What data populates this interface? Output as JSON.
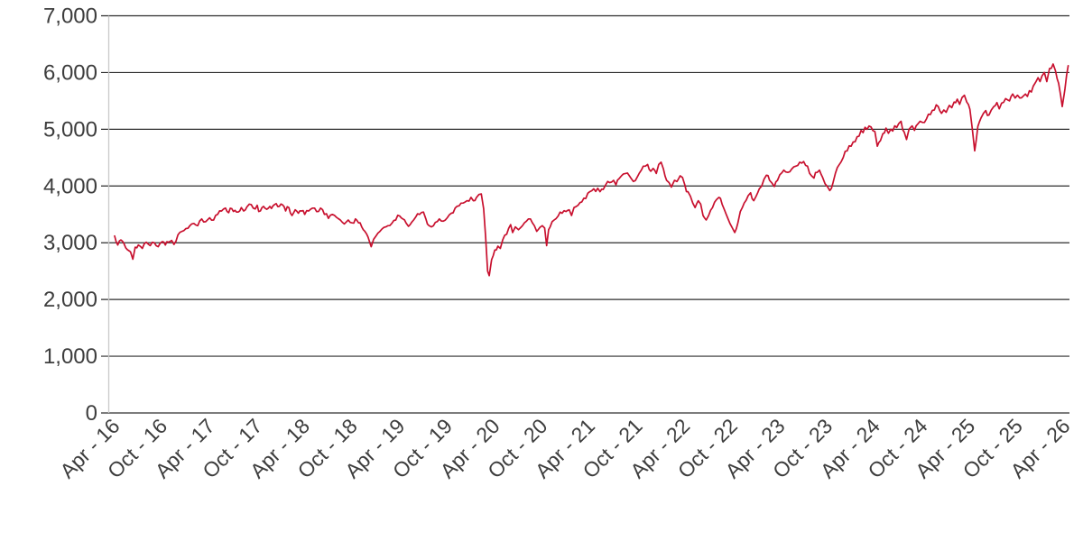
{
  "chart_data": {
    "type": "line",
    "title": "",
    "xlabel": "",
    "ylabel": "",
    "legend": "none",
    "grid": "horizontal",
    "line_color": "#c8102e",
    "grid_color": "#2d2d2d",
    "axis_line_color": "#c9c9c9",
    "tick_text_color": "#3d3d3d",
    "ylim": [
      0,
      7000
    ],
    "y_tick_values": [
      0,
      1000,
      2000,
      3000,
      4000,
      5000,
      6000,
      7000
    ],
    "y_tick_labels": [
      "0",
      "1,000",
      "2,000",
      "3,000",
      "4,000",
      "5,000",
      "6,000",
      "7,000"
    ],
    "x_tick_labels": [
      "Apr - 16",
      "Oct - 16",
      "Apr - 17",
      "Oct - 17",
      "Apr - 18",
      "Oct - 18",
      "Apr - 19",
      "Oct - 19",
      "Apr - 20",
      "Oct - 20",
      "Apr - 21",
      "Oct - 21",
      "Apr - 22",
      "Oct - 22",
      "Apr - 23",
      "Oct - 23",
      "Apr - 24",
      "Oct - 24",
      "Apr - 25",
      "Oct - 25",
      "Apr - 26"
    ],
    "x_unit": "months since Apr-2016",
    "points": [
      [
        0,
        3120
      ],
      [
        0.4,
        2960
      ],
      [
        0.8,
        3050
      ],
      [
        1.2,
        2980
      ],
      [
        1.6,
        2880
      ],
      [
        2,
        2840
      ],
      [
        2.3,
        2710
      ],
      [
        2.6,
        2920
      ],
      [
        3,
        2960
      ],
      [
        3.5,
        2900
      ],
      [
        4,
        3010
      ],
      [
        4.5,
        2950
      ],
      [
        5,
        3000
      ],
      [
        5.5,
        2930
      ],
      [
        6,
        3020
      ],
      [
        6.4,
        2960
      ],
      [
        6.8,
        3010
      ],
      [
        7.2,
        3040
      ],
      [
        7.5,
        2970
      ],
      [
        8,
        3140
      ],
      [
        8.5,
        3200
      ],
      [
        9,
        3250
      ],
      [
        9.5,
        3300
      ],
      [
        10,
        3340
      ],
      [
        10.5,
        3300
      ],
      [
        11,
        3420
      ],
      [
        11.5,
        3370
      ],
      [
        12,
        3440
      ],
      [
        12.5,
        3400
      ],
      [
        13,
        3500
      ],
      [
        13.5,
        3560
      ],
      [
        14,
        3610
      ],
      [
        14.4,
        3530
      ],
      [
        14.8,
        3600
      ],
      [
        15.2,
        3570
      ],
      [
        15.6,
        3540
      ],
      [
        16,
        3620
      ],
      [
        16.3,
        3560
      ],
      [
        16.7,
        3630
      ],
      [
        17,
        3680
      ],
      [
        17.5,
        3610
      ],
      [
        18,
        3660
      ],
      [
        18.4,
        3560
      ],
      [
        18.8,
        3640
      ],
      [
        19.2,
        3590
      ],
      [
        19.6,
        3640
      ],
      [
        20,
        3650
      ],
      [
        20.4,
        3690
      ],
      [
        20.8,
        3640
      ],
      [
        21.2,
        3670
      ],
      [
        21.6,
        3560
      ],
      [
        22,
        3620
      ],
      [
        22.4,
        3480
      ],
      [
        22.8,
        3580
      ],
      [
        23.2,
        3520
      ],
      [
        23.6,
        3560
      ],
      [
        24,
        3500
      ],
      [
        24.5,
        3560
      ],
      [
        25,
        3610
      ],
      [
        25.5,
        3550
      ],
      [
        26,
        3610
      ],
      [
        26.5,
        3500
      ],
      [
        27,
        3430
      ],
      [
        27.5,
        3500
      ],
      [
        28,
        3450
      ],
      [
        28.5,
        3400
      ],
      [
        29,
        3330
      ],
      [
        29.5,
        3400
      ],
      [
        30,
        3350
      ],
      [
        30.4,
        3420
      ],
      [
        30.8,
        3350
      ],
      [
        31.2,
        3280
      ],
      [
        31.6,
        3200
      ],
      [
        32,
        3100
      ],
      [
        32.4,
        2930
      ],
      [
        32.7,
        3060
      ],
      [
        33,
        3120
      ],
      [
        33.5,
        3200
      ],
      [
        34,
        3270
      ],
      [
        34.5,
        3300
      ],
      [
        35,
        3340
      ],
      [
        35.5,
        3400
      ],
      [
        36,
        3470
      ],
      [
        36.4,
        3420
      ],
      [
        36.8,
        3350
      ],
      [
        37.1,
        3290
      ],
      [
        37.5,
        3360
      ],
      [
        38,
        3450
      ],
      [
        38.5,
        3500
      ],
      [
        39,
        3540
      ],
      [
        39.3,
        3420
      ],
      [
        39.7,
        3300
      ],
      [
        40,
        3280
      ],
      [
        40.5,
        3360
      ],
      [
        41,
        3420
      ],
      [
        41.5,
        3380
      ],
      [
        42,
        3440
      ],
      [
        42.5,
        3520
      ],
      [
        43,
        3610
      ],
      [
        43.5,
        3650
      ],
      [
        44,
        3700
      ],
      [
        44.5,
        3740
      ],
      [
        45,
        3800
      ],
      [
        45.3,
        3740
      ],
      [
        45.7,
        3800
      ],
      [
        46,
        3850
      ],
      [
        46.3,
        3860
      ],
      [
        46.6,
        3600
      ],
      [
        46.85,
        3100
      ],
      [
        47.1,
        2500
      ],
      [
        47.3,
        2420
      ],
      [
        47.6,
        2700
      ],
      [
        48,
        2870
      ],
      [
        48.4,
        2940
      ],
      [
        48.7,
        2900
      ],
      [
        49,
        3050
      ],
      [
        49.5,
        3150
      ],
      [
        50,
        3320
      ],
      [
        50.25,
        3180
      ],
      [
        50.6,
        3280
      ],
      [
        51,
        3230
      ],
      [
        51.5,
        3300
      ],
      [
        52,
        3380
      ],
      [
        52.5,
        3420
      ],
      [
        53,
        3300
      ],
      [
        53.3,
        3200
      ],
      [
        53.7,
        3270
      ],
      [
        54,
        3300
      ],
      [
        54.3,
        3260
      ],
      [
        54.55,
        2950
      ],
      [
        54.8,
        3230
      ],
      [
        55,
        3280
      ],
      [
        55.5,
        3400
      ],
      [
        56,
        3470
      ],
      [
        56.5,
        3520
      ],
      [
        57,
        3550
      ],
      [
        57.4,
        3580
      ],
      [
        57.7,
        3480
      ],
      [
        58,
        3620
      ],
      [
        58.5,
        3660
      ],
      [
        59,
        3720
      ],
      [
        59.5,
        3780
      ],
      [
        60,
        3900
      ],
      [
        60.5,
        3950
      ],
      [
        61,
        3960
      ],
      [
        61.3,
        3900
      ],
      [
        61.7,
        3940
      ],
      [
        62,
        4020
      ],
      [
        62.5,
        4060
      ],
      [
        63,
        4100
      ],
      [
        63.3,
        4020
      ],
      [
        63.7,
        4130
      ],
      [
        64,
        4180
      ],
      [
        64.5,
        4220
      ],
      [
        65,
        4180
      ],
      [
        65.5,
        4080
      ],
      [
        66,
        4160
      ],
      [
        66.5,
        4280
      ],
      [
        67,
        4350
      ],
      [
        67.3,
        4380
      ],
      [
        67.7,
        4260
      ],
      [
        68,
        4310
      ],
      [
        68.4,
        4220
      ],
      [
        68.7,
        4380
      ],
      [
        69,
        4420
      ],
      [
        69.3,
        4300
      ],
      [
        69.7,
        4100
      ],
      [
        70,
        4060
      ],
      [
        70.3,
        3980
      ],
      [
        70.7,
        4100
      ],
      [
        71,
        4080
      ],
      [
        71.4,
        4180
      ],
      [
        71.7,
        4150
      ],
      [
        72,
        4020
      ],
      [
        72.4,
        3900
      ],
      [
        72.7,
        3820
      ],
      [
        73,
        3700
      ],
      [
        73.3,
        3620
      ],
      [
        73.7,
        3740
      ],
      [
        74,
        3680
      ],
      [
        74.3,
        3480
      ],
      [
        74.7,
        3400
      ],
      [
        75,
        3480
      ],
      [
        75.5,
        3620
      ],
      [
        76,
        3760
      ],
      [
        76.3,
        3800
      ],
      [
        76.7,
        3680
      ],
      [
        77,
        3580
      ],
      [
        77.4,
        3440
      ],
      [
        77.7,
        3340
      ],
      [
        78,
        3260
      ],
      [
        78.3,
        3180
      ],
      [
        78.7,
        3350
      ],
      [
        79,
        3550
      ],
      [
        79.5,
        3700
      ],
      [
        80,
        3830
      ],
      [
        80.3,
        3880
      ],
      [
        80.7,
        3740
      ],
      [
        81,
        3820
      ],
      [
        81.4,
        3950
      ],
      [
        81.7,
        4000
      ],
      [
        82,
        4120
      ],
      [
        82.3,
        4190
      ],
      [
        82.7,
        4100
      ],
      [
        83,
        4050
      ],
      [
        83.3,
        3990
      ],
      [
        83.7,
        4100
      ],
      [
        84,
        4200
      ],
      [
        84.5,
        4280
      ],
      [
        85,
        4240
      ],
      [
        85.5,
        4300
      ],
      [
        86,
        4350
      ],
      [
        86.5,
        4420
      ],
      [
        87,
        4430
      ],
      [
        87.5,
        4350
      ],
      [
        88,
        4180
      ],
      [
        88.3,
        4140
      ],
      [
        88.7,
        4240
      ],
      [
        89,
        4280
      ],
      [
        89.4,
        4150
      ],
      [
        89.7,
        4040
      ],
      [
        90,
        3990
      ],
      [
        90.3,
        3920
      ],
      [
        90.7,
        4050
      ],
      [
        91,
        4220
      ],
      [
        91.5,
        4380
      ],
      [
        92,
        4500
      ],
      [
        92.5,
        4620
      ],
      [
        93,
        4700
      ],
      [
        93.5,
        4780
      ],
      [
        94,
        4880
      ],
      [
        94.5,
        4940
      ],
      [
        95,
        5000
      ],
      [
        95.5,
        5040
      ],
      [
        96,
        4960
      ],
      [
        96.3,
        4700
      ],
      [
        96.7,
        4800
      ],
      [
        97,
        4920
      ],
      [
        97.4,
        5020
      ],
      [
        97.7,
        4930
      ],
      [
        98,
        5000
      ],
      [
        98.5,
        5060
      ],
      [
        99,
        5100
      ],
      [
        99.3,
        5140
      ],
      [
        99.7,
        4950
      ],
      [
        100,
        4820
      ],
      [
        100.3,
        5000
      ],
      [
        100.7,
        5060
      ],
      [
        101,
        4980
      ],
      [
        101.4,
        5090
      ],
      [
        101.7,
        5140
      ],
      [
        102,
        5120
      ],
      [
        102.5,
        5180
      ],
      [
        103,
        5260
      ],
      [
        103.5,
        5340
      ],
      [
        104,
        5400
      ],
      [
        104.4,
        5280
      ],
      [
        104.7,
        5340
      ],
      [
        105,
        5300
      ],
      [
        105.4,
        5420
      ],
      [
        105.7,
        5380
      ],
      [
        106,
        5480
      ],
      [
        106.4,
        5530
      ],
      [
        106.7,
        5440
      ],
      [
        107,
        5560
      ],
      [
        107.3,
        5600
      ],
      [
        107.6,
        5480
      ],
      [
        108,
        5350
      ],
      [
        108.3,
        5000
      ],
      [
        108.6,
        4620
      ],
      [
        108.8,
        4820
      ],
      [
        109,
        5050
      ],
      [
        109.4,
        5200
      ],
      [
        109.7,
        5280
      ],
      [
        110,
        5330
      ],
      [
        110.4,
        5250
      ],
      [
        110.7,
        5340
      ],
      [
        111,
        5400
      ],
      [
        111.4,
        5470
      ],
      [
        111.7,
        5360
      ],
      [
        112,
        5460
      ],
      [
        112.5,
        5540
      ],
      [
        113,
        5500
      ],
      [
        113.4,
        5620
      ],
      [
        113.7,
        5550
      ],
      [
        114,
        5600
      ],
      [
        114.3,
        5550
      ],
      [
        114.7,
        5580
      ],
      [
        115,
        5620
      ],
      [
        115.5,
        5680
      ],
      [
        116,
        5760
      ],
      [
        116.3,
        5830
      ],
      [
        116.6,
        5910
      ],
      [
        116.85,
        5840
      ],
      [
        117.1,
        5940
      ],
      [
        117.4,
        6000
      ],
      [
        117.7,
        5840
      ],
      [
        118.05,
        6070
      ],
      [
        118.5,
        6150
      ],
      [
        118.8,
        6030
      ],
      [
        119.2,
        5810
      ],
      [
        119.45,
        5600
      ],
      [
        119.65,
        5400
      ],
      [
        119.8,
        5530
      ],
      [
        120,
        5710
      ],
      [
        120.2,
        5950
      ],
      [
        120.4,
        6120
      ]
    ]
  }
}
